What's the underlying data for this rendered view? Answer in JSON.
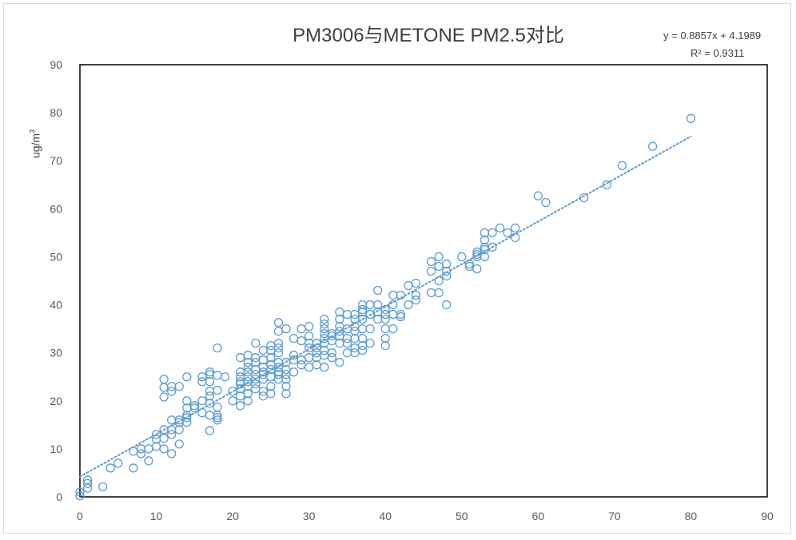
{
  "chart_data": {
    "type": "scatter",
    "title": "PM3006与METONE  PM2.5对比",
    "xlabel": "",
    "ylabel": "ug/m³",
    "ylabel_base": "ug/m",
    "ylabel_sup": "3",
    "xlim": [
      0,
      90
    ],
    "ylim": [
      0,
      90
    ],
    "xticks": [
      0,
      10,
      20,
      30,
      40,
      50,
      60,
      70,
      80,
      90
    ],
    "yticks": [
      0,
      10,
      20,
      30,
      40,
      50,
      60,
      70,
      80,
      90
    ],
    "grid": false,
    "legend": "none",
    "marker_color": "#5b9bd5",
    "trendline": {
      "type": "linear",
      "slope": 0.8857,
      "intercept": 4.1989,
      "x_range": [
        0,
        80
      ],
      "equation_label": "y = 0.8857x + 4.1989",
      "r2_label": "R² = 0.9311",
      "style": "dotted",
      "color": "#5b9bd5"
    },
    "points": [
      [
        0,
        0.2
      ],
      [
        0,
        1
      ],
      [
        1,
        1.8
      ],
      [
        1,
        2.8
      ],
      [
        1,
        3.5
      ],
      [
        3,
        2.1
      ],
      [
        4,
        6
      ],
      [
        5,
        7
      ],
      [
        7,
        6
      ],
      [
        7,
        9.5
      ],
      [
        8,
        9
      ],
      [
        8,
        10
      ],
      [
        9,
        7.5
      ],
      [
        9,
        10
      ],
      [
        10,
        10.5
      ],
      [
        10,
        12
      ],
      [
        10,
        13
      ],
      [
        11,
        10
      ],
      [
        11,
        12.2
      ],
      [
        11,
        14
      ],
      [
        11,
        20.8
      ],
      [
        11,
        22.8
      ],
      [
        11,
        24.5
      ],
      [
        12,
        9
      ],
      [
        12,
        13
      ],
      [
        12,
        14
      ],
      [
        12,
        16
      ],
      [
        12,
        22
      ],
      [
        12,
        23
      ],
      [
        13,
        11
      ],
      [
        13,
        14
      ],
      [
        13,
        15.5
      ],
      [
        13,
        16
      ],
      [
        13,
        23
      ],
      [
        14,
        15.5
      ],
      [
        14,
        16.5
      ],
      [
        14,
        17
      ],
      [
        14,
        18.5
      ],
      [
        14,
        20
      ],
      [
        14,
        25
      ],
      [
        15,
        18.5
      ],
      [
        15,
        19
      ],
      [
        16,
        17.5
      ],
      [
        16,
        20
      ],
      [
        16,
        24
      ],
      [
        16,
        25
      ],
      [
        17,
        13.8
      ],
      [
        17,
        17
      ],
      [
        17,
        19.5
      ],
      [
        17,
        21
      ],
      [
        17,
        22
      ],
      [
        17,
        24
      ],
      [
        17,
        25.5
      ],
      [
        17,
        26
      ],
      [
        18,
        16
      ],
      [
        18,
        16.5
      ],
      [
        18,
        17
      ],
      [
        18,
        18.7
      ],
      [
        18,
        22.2
      ],
      [
        18,
        25.3
      ],
      [
        18,
        31
      ],
      [
        19,
        25
      ],
      [
        20,
        20
      ],
      [
        20,
        22
      ],
      [
        21,
        19
      ],
      [
        21,
        21
      ],
      [
        21,
        22.5
      ],
      [
        21,
        23.5
      ],
      [
        21,
        24
      ],
      [
        21,
        25
      ],
      [
        21,
        26
      ],
      [
        21,
        29
      ],
      [
        22,
        20
      ],
      [
        22,
        21.5
      ],
      [
        22,
        23
      ],
      [
        22,
        24
      ],
      [
        22,
        25
      ],
      [
        22,
        26
      ],
      [
        22,
        27
      ],
      [
        22,
        28
      ],
      [
        22,
        29.5
      ],
      [
        23,
        22.5
      ],
      [
        23,
        23.5
      ],
      [
        23,
        24.5
      ],
      [
        23,
        25.5
      ],
      [
        23,
        26.5
      ],
      [
        23,
        28
      ],
      [
        23,
        29
      ],
      [
        23,
        32
      ],
      [
        24,
        21
      ],
      [
        24,
        22
      ],
      [
        24,
        24.5
      ],
      [
        24,
        25.5
      ],
      [
        24,
        26
      ],
      [
        24,
        27
      ],
      [
        24,
        28.5
      ],
      [
        24,
        30.5
      ],
      [
        25,
        21.5
      ],
      [
        25,
        23
      ],
      [
        25,
        25
      ],
      [
        25,
        26.5
      ],
      [
        25,
        27.5
      ],
      [
        25,
        29
      ],
      [
        25,
        30.5
      ],
      [
        25,
        31.5
      ],
      [
        26,
        24.5
      ],
      [
        26,
        25.5
      ],
      [
        26,
        26
      ],
      [
        26,
        27
      ],
      [
        26,
        28
      ],
      [
        26,
        30
      ],
      [
        26,
        31
      ],
      [
        26,
        32
      ],
      [
        26,
        34.5
      ],
      [
        26,
        36.3
      ],
      [
        27,
        21.5
      ],
      [
        27,
        23
      ],
      [
        27,
        24.5
      ],
      [
        27,
        25.5
      ],
      [
        27,
        26.5
      ],
      [
        27,
        28
      ],
      [
        27,
        35
      ],
      [
        28,
        26
      ],
      [
        28,
        28.5
      ],
      [
        28,
        29.5
      ],
      [
        28,
        33
      ],
      [
        29,
        27.5
      ],
      [
        29,
        28.5
      ],
      [
        29,
        32.5
      ],
      [
        29,
        35
      ],
      [
        30,
        27
      ],
      [
        30,
        29
      ],
      [
        30,
        31
      ],
      [
        30,
        32
      ],
      [
        30,
        33.5
      ],
      [
        30,
        35.5
      ],
      [
        31,
        27.5
      ],
      [
        31,
        29
      ],
      [
        31,
        30
      ],
      [
        31,
        31
      ],
      [
        31,
        32
      ],
      [
        32,
        27
      ],
      [
        32,
        29.5
      ],
      [
        32,
        30.5
      ],
      [
        32,
        32
      ],
      [
        32,
        33
      ],
      [
        32,
        34
      ],
      [
        32,
        35
      ],
      [
        32,
        36
      ],
      [
        32,
        37
      ],
      [
        33,
        29
      ],
      [
        33,
        30
      ],
      [
        33,
        32.5
      ],
      [
        33,
        33.5
      ],
      [
        33,
        34
      ],
      [
        34,
        28
      ],
      [
        34,
        32
      ],
      [
        34,
        33.5
      ],
      [
        34,
        34.5
      ],
      [
        34,
        35.5
      ],
      [
        34,
        37
      ],
      [
        34,
        38.5
      ],
      [
        35,
        30
      ],
      [
        35,
        32
      ],
      [
        35,
        33
      ],
      [
        35,
        35
      ],
      [
        35,
        38
      ],
      [
        36,
        30
      ],
      [
        36,
        31
      ],
      [
        36,
        33
      ],
      [
        36,
        34.5
      ],
      [
        36,
        35.5
      ],
      [
        36,
        37
      ],
      [
        36,
        38
      ],
      [
        37,
        30.5
      ],
      [
        37,
        31.5
      ],
      [
        37,
        33
      ],
      [
        37,
        35
      ],
      [
        37,
        37
      ],
      [
        37,
        38.5
      ],
      [
        37,
        39
      ],
      [
        37,
        40
      ],
      [
        38,
        32
      ],
      [
        38,
        35
      ],
      [
        38,
        38
      ],
      [
        38,
        40
      ],
      [
        39,
        37
      ],
      [
        39,
        38.5
      ],
      [
        39,
        40
      ],
      [
        39,
        43
      ],
      [
        40,
        31.5
      ],
      [
        40,
        33
      ],
      [
        40,
        35
      ],
      [
        40,
        37
      ],
      [
        40,
        38
      ],
      [
        40,
        39
      ],
      [
        41,
        35
      ],
      [
        41,
        38
      ],
      [
        41,
        40
      ],
      [
        41,
        42
      ],
      [
        42,
        37.5
      ],
      [
        42,
        38
      ],
      [
        42,
        42
      ],
      [
        43,
        40
      ],
      [
        43,
        44
      ],
      [
        44,
        41
      ],
      [
        44,
        42
      ],
      [
        44,
        44.5
      ],
      [
        46,
        42.5
      ],
      [
        46,
        47
      ],
      [
        46,
        49
      ],
      [
        47,
        42.5
      ],
      [
        47,
        45
      ],
      [
        47,
        48
      ],
      [
        47,
        50
      ],
      [
        48,
        40
      ],
      [
        48,
        46
      ],
      [
        48,
        47
      ],
      [
        48,
        48.5
      ],
      [
        50,
        50
      ],
      [
        51,
        48
      ],
      [
        51,
        48.5
      ],
      [
        52,
        47.5
      ],
      [
        52,
        50
      ],
      [
        52,
        50.5
      ],
      [
        52,
        51
      ],
      [
        53,
        50
      ],
      [
        53,
        51.5
      ],
      [
        53,
        52
      ],
      [
        53,
        53.5
      ],
      [
        53,
        55
      ],
      [
        54,
        52
      ],
      [
        54,
        55
      ],
      [
        55,
        56
      ],
      [
        56,
        55
      ],
      [
        57,
        54
      ],
      [
        57,
        56
      ],
      [
        60,
        62.7
      ],
      [
        61,
        61.3
      ],
      [
        66,
        62.3
      ],
      [
        69,
        65
      ],
      [
        71,
        69
      ],
      [
        75,
        73
      ],
      [
        80,
        78.8
      ]
    ]
  }
}
